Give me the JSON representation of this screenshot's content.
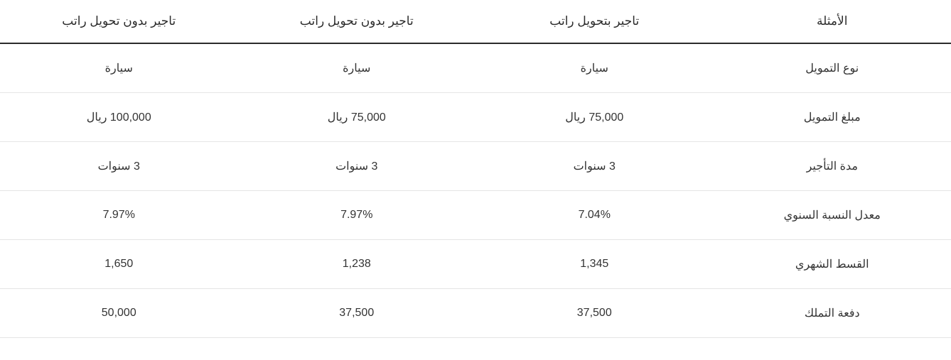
{
  "table": {
    "columns": [
      "الأمثلة",
      "تاجير بتحويل راتب",
      "تاجير بدون تحويل راتب",
      "تاجير بدون تحويل راتب"
    ],
    "rows": [
      {
        "label": "نوع التمويل",
        "values": [
          "سيارة",
          "سيارة",
          "سيارة"
        ]
      },
      {
        "label": "مبلغ التمويل",
        "values": [
          "75,000 ريال",
          "75,000 ريال",
          "100,000 ريال"
        ]
      },
      {
        "label": "مدة التأجير",
        "values": [
          "3 سنوات",
          "3 سنوات",
          "3 سنوات"
        ]
      },
      {
        "label": "معدل النسبة السنوي",
        "values": [
          "7.04%",
          "7.97%",
          "7.97%"
        ]
      },
      {
        "label": "القسط الشهري",
        "values": [
          "1,345",
          "1,238",
          "1,650"
        ]
      },
      {
        "label": "دفعة التملك",
        "values": [
          "37,500",
          "37,500",
          "50,000"
        ]
      }
    ],
    "colors": {
      "text": "#333333",
      "header_border": "#2b2b2b",
      "row_border": "#e5e5e5",
      "background": "#ffffff"
    },
    "font_size": 16,
    "header_font_size": 17
  }
}
